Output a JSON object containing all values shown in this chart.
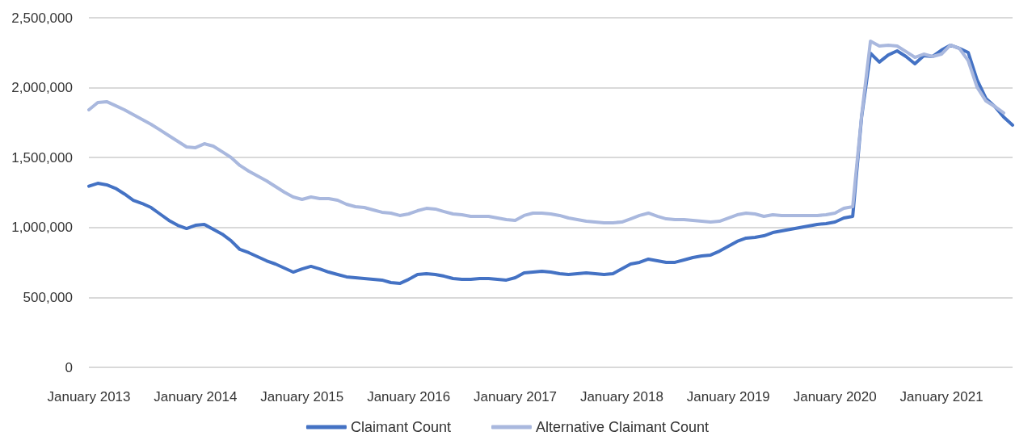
{
  "chart_data": {
    "type": "line",
    "categories": [
      "January 2013",
      null,
      null,
      null,
      null,
      null,
      null,
      null,
      null,
      null,
      null,
      null,
      "January 2014",
      null,
      null,
      null,
      null,
      null,
      null,
      null,
      null,
      null,
      null,
      null,
      "January 2015",
      null,
      null,
      null,
      null,
      null,
      null,
      null,
      null,
      null,
      null,
      null,
      "January 2016",
      null,
      null,
      null,
      null,
      null,
      null,
      null,
      null,
      null,
      null,
      null,
      "January 2017",
      null,
      null,
      null,
      null,
      null,
      null,
      null,
      null,
      null,
      null,
      null,
      "January 2018",
      null,
      null,
      null,
      null,
      null,
      null,
      null,
      null,
      null,
      null,
      null,
      "January 2019",
      null,
      null,
      null,
      null,
      null,
      null,
      null,
      null,
      null,
      null,
      null,
      "January 2020",
      null,
      null,
      null,
      null,
      null,
      null,
      null,
      null,
      null,
      null,
      null,
      "January 2021",
      null,
      null,
      null,
      null,
      null,
      null,
      null,
      null
    ],
    "series": [
      {
        "name": "Claimant Count",
        "color": "#4472c4",
        "values": [
          1295000,
          1316000,
          1305000,
          1280000,
          1240000,
          1195000,
          1172000,
          1143000,
          1097000,
          1051000,
          1016000,
          993000,
          1016000,
          1022000,
          987000,
          953000,
          906000,
          843000,
          820000,
          791000,
          762000,
          739000,
          710000,
          681000,
          704000,
          722000,
          704000,
          681000,
          664000,
          647000,
          641000,
          635000,
          629000,
          624000,
          606000,
          600000,
          629000,
          664000,
          670000,
          664000,
          652000,
          635000,
          629000,
          629000,
          635000,
          635000,
          629000,
          624000,
          641000,
          676000,
          681000,
          687000,
          681000,
          670000,
          664000,
          670000,
          676000,
          670000,
          664000,
          670000,
          704000,
          739000,
          751000,
          774000,
          762000,
          751000,
          751000,
          768000,
          785000,
          797000,
          803000,
          831000,
          866000,
          901000,
          924000,
          930000,
          941000,
          964000,
          976000,
          987000,
          999000,
          1010000,
          1022000,
          1028000,
          1039000,
          1068000,
          1080000,
          1790000,
          2246000,
          2183000,
          2234000,
          2263000,
          2223000,
          2171000,
          2229000,
          2223000,
          2269000,
          2304000,
          2281000,
          2252000,
          2056000,
          1923000,
          1865000,
          1790000,
          1732000
        ]
      },
      {
        "name": "Alternative Claimant Count",
        "color": "#a9b8de",
        "values": [
          1842000,
          1894000,
          1900000,
          1871000,
          1842000,
          1807000,
          1773000,
          1738000,
          1698000,
          1657000,
          1617000,
          1576000,
          1571000,
          1599000,
          1582000,
          1542000,
          1501000,
          1444000,
          1403000,
          1368000,
          1334000,
          1293000,
          1253000,
          1218000,
          1201000,
          1218000,
          1207000,
          1207000,
          1195000,
          1166000,
          1149000,
          1143000,
          1126000,
          1109000,
          1103000,
          1086000,
          1097000,
          1120000,
          1137000,
          1132000,
          1114000,
          1097000,
          1091000,
          1080000,
          1080000,
          1080000,
          1068000,
          1057000,
          1051000,
          1086000,
          1103000,
          1103000,
          1097000,
          1086000,
          1068000,
          1057000,
          1045000,
          1039000,
          1034000,
          1034000,
          1039000,
          1062000,
          1086000,
          1103000,
          1080000,
          1062000,
          1057000,
          1057000,
          1051000,
          1045000,
          1039000,
          1045000,
          1068000,
          1091000,
          1103000,
          1097000,
          1080000,
          1091000,
          1086000,
          1086000,
          1086000,
          1086000,
          1086000,
          1091000,
          1103000,
          1137000,
          1149000,
          1800000,
          2333000,
          2298000,
          2304000,
          2298000,
          2258000,
          2217000,
          2240000,
          2223000,
          2240000,
          2304000,
          2281000,
          2194000,
          2004000,
          1905000,
          1865000,
          1820000,
          null
        ]
      }
    ],
    "ylim": [
      0,
      2500000
    ],
    "yticks": [
      {
        "value": 0,
        "label": "0"
      },
      {
        "value": 500000,
        "label": "500,000"
      },
      {
        "value": 1000000,
        "label": "1,000,000"
      },
      {
        "value": 1500000,
        "label": "1,500,000"
      },
      {
        "value": 2000000,
        "label": "2,000,000"
      },
      {
        "value": 2500000,
        "label": "2,500,000"
      }
    ],
    "grid": "y",
    "legend": "bottom",
    "marker": "none",
    "line_style": "solid"
  }
}
